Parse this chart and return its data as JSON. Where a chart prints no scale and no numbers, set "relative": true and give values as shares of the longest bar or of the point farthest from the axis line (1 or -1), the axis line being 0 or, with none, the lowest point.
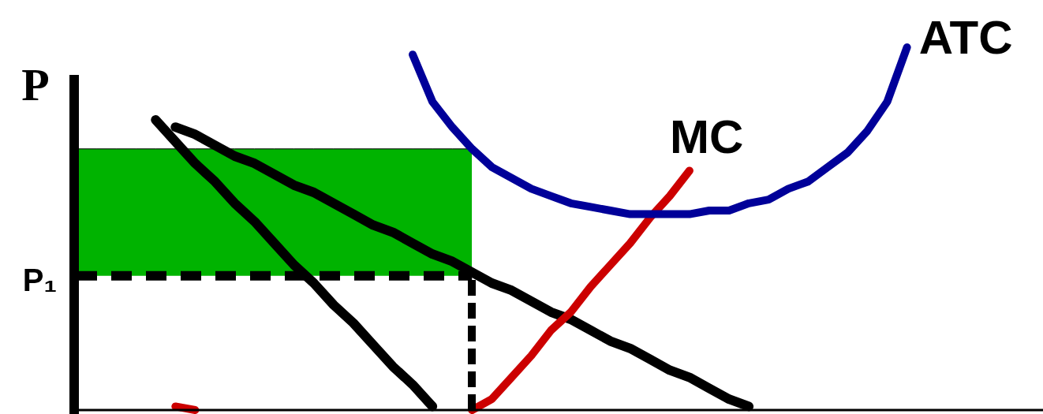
{
  "chart_data": {
    "type": "line",
    "relative": true,
    "ylabel": "P",
    "grid": false,
    "legend": false,
    "categories": [
      null,
      null,
      null,
      null,
      null,
      null,
      null,
      null,
      null,
      null,
      null,
      null,
      null,
      null,
      null,
      null,
      null,
      null,
      null,
      null,
      null,
      null,
      null,
      null,
      null,
      null,
      null,
      null,
      null,
      null,
      null,
      null,
      null,
      null,
      null,
      null,
      null,
      null,
      null,
      null,
      null,
      null,
      null,
      null,
      null,
      null,
      null,
      null,
      null
    ],
    "annotations": [
      "P₁"
    ],
    "series": [
      {
        "type": "area",
        "color": "#00b300",
        "values": [
          0.72,
          0.72,
          0.72,
          0.72,
          0.72,
          0.72,
          0.72,
          0.72,
          0.72,
          0.72,
          0.72,
          0.72,
          0.72,
          0.72,
          0.72,
          0.72,
          0.72,
          0.72,
          0.72,
          0.72,
          0.72,
          null,
          null,
          null,
          null,
          null,
          null,
          null,
          null,
          null,
          null,
          null,
          null,
          null,
          null,
          null,
          null,
          null,
          null,
          null,
          null,
          null,
          null,
          null,
          null,
          null,
          null,
          null,
          null
        ]
      },
      {
        "line_style": "dashed",
        "color": "#000000",
        "values": [
          0.37,
          0.37,
          0.37,
          0.37,
          0.37,
          0.37,
          0.37,
          0.37,
          0.37,
          0.37,
          0.37,
          0.37,
          0.37,
          0.37,
          0.37,
          0.37,
          0.37,
          0.37,
          0.37,
          0.37,
          0.37,
          null,
          null,
          null,
          null,
          null,
          null,
          null,
          null,
          null,
          null,
          null,
          null,
          null,
          null,
          null,
          null,
          null,
          null,
          null,
          null,
          null,
          null,
          null,
          null,
          null,
          null,
          null,
          null
        ]
      },
      {
        "name": "ATC",
        "color": "#000099",
        "values": [
          null,
          null,
          null,
          null,
          null,
          null,
          null,
          null,
          null,
          null,
          null,
          null,
          null,
          null,
          null,
          null,
          null,
          0.98,
          0.85,
          0.78,
          0.72,
          0.67,
          0.64,
          0.61,
          0.59,
          0.57,
          0.56,
          0.55,
          0.54,
          0.54,
          0.54,
          0.54,
          0.55,
          0.55,
          0.57,
          0.58,
          0.61,
          0.63,
          0.67,
          0.71,
          0.77,
          0.85,
          1,
          null,
          null,
          null,
          null,
          null,
          null
        ]
      },
      {
        "name": "MC",
        "color": "#cc0000",
        "values": [
          null,
          null,
          null,
          null,
          null,
          0.01,
          0,
          null,
          null,
          null,
          null,
          null,
          null,
          null,
          null,
          null,
          null,
          null,
          null,
          null,
          0,
          0.03,
          0.09,
          0.15,
          0.22,
          0.27,
          0.34,
          0.4,
          0.46,
          0.53,
          0.59,
          0.66,
          null,
          null,
          null,
          null,
          null,
          null,
          null,
          null,
          null,
          null,
          null,
          null,
          null,
          null,
          null,
          null,
          null
        ]
      },
      {
        "color": "#000000",
        "values": [
          null,
          null,
          null,
          null,
          0.8,
          0.74,
          0.68,
          0.63,
          0.57,
          0.52,
          0.46,
          0.4,
          0.35,
          0.29,
          0.24,
          0.18,
          0.12,
          0.07,
          0.01,
          null,
          null,
          null,
          null,
          null,
          null,
          null,
          null,
          null,
          null,
          null,
          null,
          null,
          null,
          null,
          null,
          null,
          null,
          null,
          null,
          null,
          null,
          null,
          null,
          null,
          null,
          null,
          null,
          null,
          null
        ]
      },
      {
        "color": "#000000",
        "values": [
          null,
          null,
          null,
          null,
          null,
          0.78,
          0.76,
          0.73,
          0.7,
          0.68,
          0.65,
          0.62,
          0.6,
          0.57,
          0.54,
          0.51,
          0.49,
          0.46,
          0.43,
          0.41,
          0.38,
          0.35,
          0.33,
          0.3,
          0.27,
          0.25,
          0.22,
          0.19,
          0.17,
          0.14,
          0.11,
          0.09,
          0.06,
          0.03,
          0.01,
          null,
          null,
          null,
          null,
          null,
          null,
          null,
          null,
          null,
          null,
          null,
          null,
          null,
          null
        ]
      }
    ]
  }
}
